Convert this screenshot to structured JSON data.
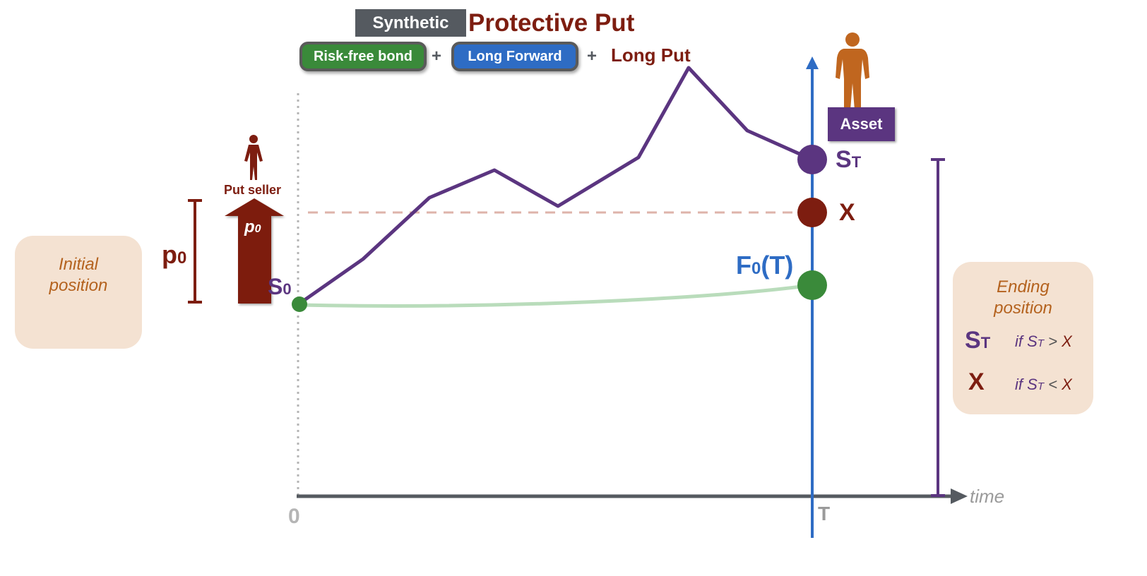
{
  "header": {
    "synthetic_label": "Synthetic",
    "title": "Protective Put",
    "components": {
      "bond": "Risk-free bond",
      "plus1": "+",
      "forward": "Long Forward",
      "plus2": "+",
      "put": "Long Put"
    }
  },
  "left_panel": {
    "line1": "Initial",
    "line2": "position"
  },
  "premium": {
    "label_main": "p",
    "label_sub": "0",
    "arrow_main": "p",
    "arrow_sub": "0",
    "seller_label": "Put seller"
  },
  "labels": {
    "s0_main": "S",
    "s0_sub": "0",
    "st_main": "S",
    "st_sub": "T",
    "x": "X",
    "f0t_main": "F",
    "f0t_sub": "0",
    "f0t_tail": "(T)",
    "asset": "Asset",
    "origin": "0",
    "t": "T",
    "time": "time"
  },
  "right_panel": {
    "line1": "Ending",
    "line2": "position",
    "row1_main": "S",
    "row1_sub": "T",
    "row1_cond_if": "if ",
    "row1_cond_s": "S",
    "row1_cond_sub": "T",
    "row1_cond_rel": " > ",
    "row1_cond_x": "X",
    "row2_main": "X",
    "row2_cond_if": "if ",
    "row2_cond_s": "S",
    "row2_cond_sub": "T",
    "row2_cond_rel": " < ",
    "row2_cond_x": "X"
  },
  "colors": {
    "purple": "#5b3580",
    "dark_red": "#7d1d10",
    "blue": "#2e6cc4",
    "green": "#3a8a3a",
    "light_green": "#b9dcbb",
    "grey": "#555a60",
    "orange_figure": "#c0661f",
    "panel_bg": "#f4e2d2"
  }
}
